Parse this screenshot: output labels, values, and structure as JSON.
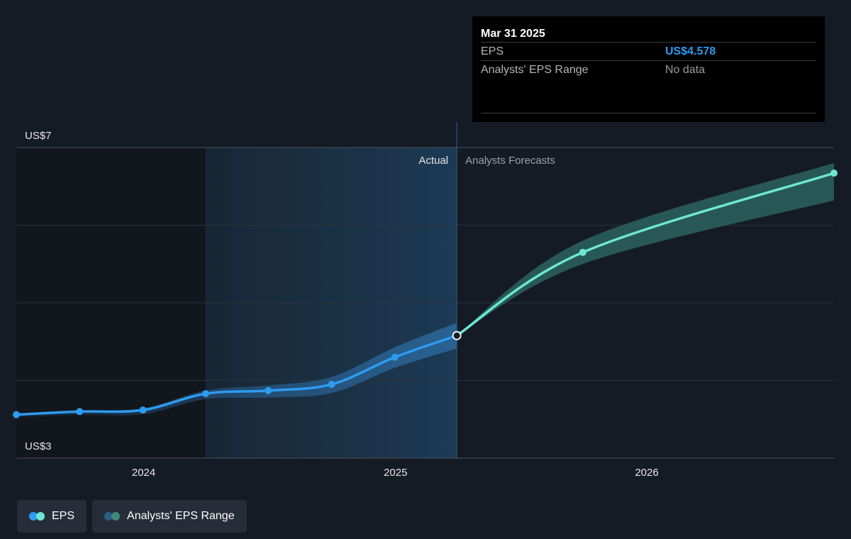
{
  "chart_data": {
    "type": "line",
    "y_axis": {
      "top_label": "US$7",
      "bottom_label": "US$3",
      "ylim": [
        3,
        7
      ],
      "grid": true
    },
    "x_axis": {
      "tick_labels": [
        "2024",
        "2025",
        "2026"
      ],
      "tick_values": [
        "2024-01-01",
        "2025-01-01",
        "2026-01-01"
      ],
      "range": [
        "2023-07-01",
        "2026-09-30"
      ]
    },
    "region_labels": {
      "actual": "Actual",
      "forecast": "Analysts Forecasts"
    },
    "highlight_start": "2024-03-31",
    "divider_date": "2025-03-31",
    "series": [
      {
        "name": "EPS",
        "kind": "actual",
        "color": "#2d9cf0",
        "points": [
          {
            "x": "2023-06-30",
            "y": 3.56
          },
          {
            "x": "2023-09-30",
            "y": 3.6
          },
          {
            "x": "2023-12-31",
            "y": 3.62
          },
          {
            "x": "2024-03-31",
            "y": 3.83
          },
          {
            "x": "2024-06-30",
            "y": 3.87
          },
          {
            "x": "2024-09-30",
            "y": 3.95
          },
          {
            "x": "2024-12-31",
            "y": 4.3
          },
          {
            "x": "2025-03-31",
            "y": 4.578
          }
        ]
      },
      {
        "name": "EPS",
        "kind": "forecast",
        "color": "#6ee7d2",
        "points": [
          {
            "x": "2025-03-31",
            "y": 4.578
          },
          {
            "x": "2025-09-30",
            "y": 5.65
          },
          {
            "x": "2026-09-30",
            "y": 6.67
          }
        ]
      }
    ],
    "range_band": {
      "name": "Analysts' EPS Range",
      "color": "#6ee7d2",
      "points": [
        {
          "x": "2025-03-31",
          "low": 4.578,
          "high": 4.578
        },
        {
          "x": "2025-09-30",
          "low": 5.5,
          "high": 5.8
        },
        {
          "x": "2026-09-30",
          "low": 6.32,
          "high": 6.8
        }
      ]
    }
  },
  "tooltip": {
    "date": "Mar 31 2025",
    "rows": [
      {
        "label": "EPS",
        "value": "US$4.578"
      },
      {
        "label": "Analysts' EPS Range",
        "value": "No data"
      }
    ]
  },
  "legend": [
    {
      "label": "EPS",
      "colors": [
        "#2d9cf0",
        "#6ee7d2"
      ]
    },
    {
      "label": "Analysts' EPS Range",
      "colors": [
        "#2a5f86",
        "#3d8a7c"
      ]
    }
  ]
}
